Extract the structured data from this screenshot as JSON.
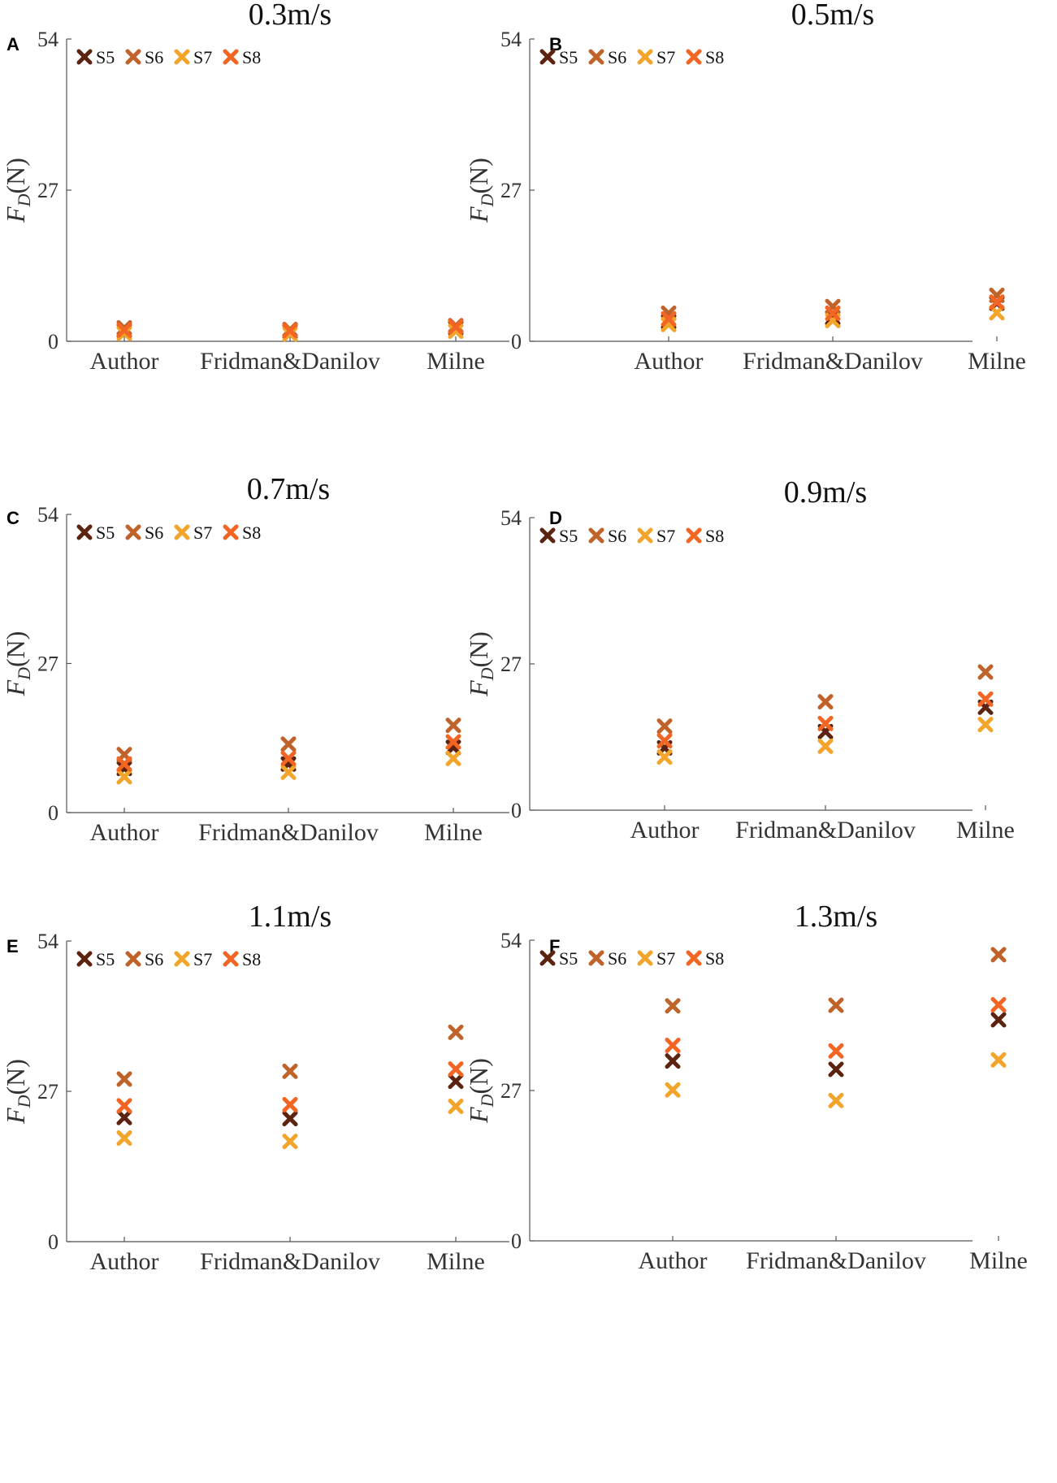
{
  "chart_data": [
    {
      "panel": "A",
      "type": "scatter",
      "title": "0.3m/s",
      "xlabel": "",
      "ylabel": "F_D(N)",
      "ylabel_main": "F",
      "ylabel_sub": "D",
      "ylabel_unit": "(N)",
      "ylim": [
        0,
        54
      ],
      "yticks": [
        "0",
        "27",
        "54"
      ],
      "categories": [
        "Author",
        "Fridman&Danilov",
        "Milne"
      ],
      "series": [
        {
          "name": "S5",
          "color": "#5c2410",
          "values": [
            1.9,
            1.8,
            2.4
          ]
        },
        {
          "name": "S6",
          "color": "#c0632a",
          "values": [
            2.4,
            2.1,
            2.8
          ]
        },
        {
          "name": "S7",
          "color": "#f3a42a",
          "values": [
            1.4,
            1.3,
            1.8
          ]
        },
        {
          "name": "S8",
          "color": "#f26522",
          "values": [
            2.0,
            1.9,
            2.6
          ]
        }
      ],
      "legend": "top-left"
    },
    {
      "panel": "B",
      "type": "scatter",
      "title": "0.5m/s",
      "xlabel": "",
      "ylabel": "F_D(N)",
      "ylabel_main": "F",
      "ylabel_sub": "D",
      "ylabel_unit": "(N)",
      "ylim": [
        0,
        54
      ],
      "yticks": [
        "0",
        "27",
        "54"
      ],
      "categories": [
        "Author",
        "Fridman&Danilov",
        "Milne"
      ],
      "series": [
        {
          "name": "S5",
          "color": "#5c2410",
          "values": [
            3.5,
            4.2,
            6.8
          ]
        },
        {
          "name": "S6",
          "color": "#c0632a",
          "values": [
            5.0,
            6.2,
            8.2
          ]
        },
        {
          "name": "S7",
          "color": "#f3a42a",
          "values": [
            3.0,
            3.7,
            5.1
          ]
        },
        {
          "name": "S8",
          "color": "#f26522",
          "values": [
            4.0,
            5.0,
            7.0
          ]
        }
      ],
      "legend": "top-left"
    },
    {
      "panel": "C",
      "type": "scatter",
      "title": "0.7m/s",
      "xlabel": "",
      "ylabel": "F_D(N)",
      "ylabel_main": "F",
      "ylabel_sub": "D",
      "ylabel_unit": "(N)",
      "ylim": [
        0,
        54
      ],
      "yticks": [
        "0",
        "27",
        "54"
      ],
      "categories": [
        "Author",
        "Fridman&Danilov",
        "Milne"
      ],
      "series": [
        {
          "name": "S5",
          "color": "#5c2410",
          "values": [
            8.0,
            8.8,
            11.8
          ]
        },
        {
          "name": "S6",
          "color": "#c0632a",
          "values": [
            10.5,
            12.4,
            15.8
          ]
        },
        {
          "name": "S7",
          "color": "#f3a42a",
          "values": [
            6.5,
            7.3,
            9.8
          ]
        },
        {
          "name": "S8",
          "color": "#f26522",
          "values": [
            8.8,
            9.8,
            12.8
          ]
        }
      ],
      "legend": "top-left"
    },
    {
      "panel": "D",
      "type": "scatter",
      "title": "0.9m/s",
      "xlabel": "",
      "ylabel": "F_D(N)",
      "ylabel_main": "F",
      "ylabel_sub": "D",
      "ylabel_unit": "(N)",
      "ylim": [
        0,
        54
      ],
      "yticks": [
        "0",
        "27",
        "54"
      ],
      "categories": [
        "Author",
        "Fridman&Danilov",
        "Milne"
      ],
      "series": [
        {
          "name": "S5",
          "color": "#5c2410",
          "values": [
            11.5,
            14.5,
            19.0
          ]
        },
        {
          "name": "S6",
          "color": "#c0632a",
          "values": [
            15.5,
            20.0,
            25.5
          ]
        },
        {
          "name": "S7",
          "color": "#f3a42a",
          "values": [
            9.8,
            11.8,
            15.8
          ]
        },
        {
          "name": "S8",
          "color": "#f26522",
          "values": [
            12.8,
            16.0,
            20.5
          ]
        }
      ],
      "legend": "top-left"
    },
    {
      "panel": "E",
      "type": "scatter",
      "title": "1.1m/s",
      "xlabel": "",
      "ylabel": "F_D(N)",
      "ylabel_main": "F",
      "ylabel_sub": "D",
      "ylabel_unit": "(N)",
      "ylim": [
        0,
        54
      ],
      "yticks": [
        "0",
        "27",
        "54"
      ],
      "categories": [
        "Author",
        "Fridman&Danilov",
        "Milne"
      ],
      "series": [
        {
          "name": "S5",
          "color": "#5c2410",
          "values": [
            22.3,
            22.1,
            28.8
          ]
        },
        {
          "name": "S6",
          "color": "#c0632a",
          "values": [
            29.2,
            30.6,
            37.6
          ]
        },
        {
          "name": "S7",
          "color": "#f3a42a",
          "values": [
            18.6,
            18.0,
            24.3
          ]
        },
        {
          "name": "S8",
          "color": "#f26522",
          "values": [
            24.4,
            24.6,
            31.0
          ]
        }
      ],
      "legend": "top-left"
    },
    {
      "panel": "F",
      "type": "scatter",
      "title": "1.3m/s",
      "xlabel": "",
      "ylabel": "F_D(N)",
      "ylabel_main": "F",
      "ylabel_sub": "D",
      "ylabel_unit": "(N)",
      "ylim": [
        0,
        54
      ],
      "yticks": [
        "0",
        "27",
        "54"
      ],
      "categories": [
        "Author",
        "Fridman&Danilov",
        "Milne"
      ],
      "series": [
        {
          "name": "S5",
          "color": "#5c2410",
          "values": [
            32.3,
            30.8,
            39.7
          ]
        },
        {
          "name": "S6",
          "color": "#c0632a",
          "values": [
            42.2,
            42.3,
            51.4
          ]
        },
        {
          "name": "S7",
          "color": "#f3a42a",
          "values": [
            27.1,
            25.2,
            32.5
          ]
        },
        {
          "name": "S8",
          "color": "#f26522",
          "values": [
            35.1,
            34.1,
            42.4
          ]
        }
      ],
      "legend": "top-left"
    }
  ]
}
